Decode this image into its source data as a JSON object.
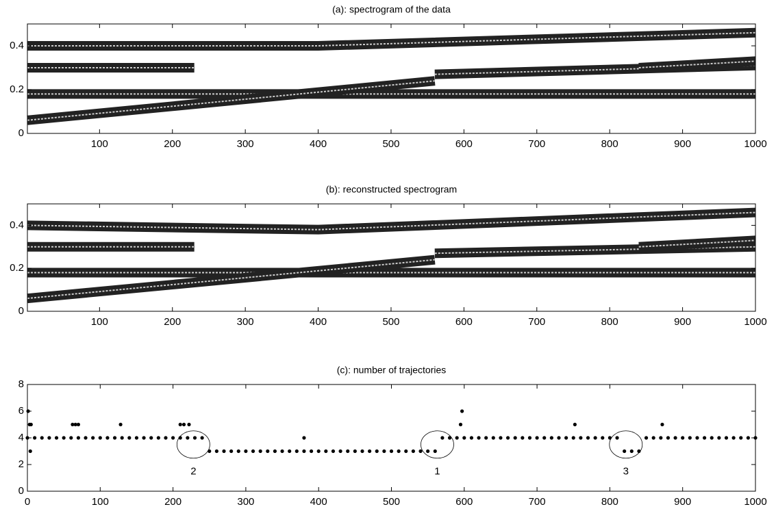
{
  "chart_data": [
    {
      "type": "contour",
      "title": "(a): spectrogram of the data",
      "xlim": [
        1,
        1000
      ],
      "xticks": [
        100,
        200,
        300,
        400,
        500,
        600,
        700,
        800,
        900,
        1000
      ],
      "ylim": [
        0,
        0.5
      ],
      "yticks": [
        0,
        0.2,
        0.4
      ],
      "series": [
        {
          "x": [
            1,
            400,
            1000
          ],
          "values": [
            0.4,
            0.4,
            0.46
          ]
        },
        {
          "x": [
            1,
            230
          ],
          "values": [
            0.3,
            0.3
          ]
        },
        {
          "x": [
            1,
            1000
          ],
          "values": [
            0.18,
            0.18
          ]
        },
        {
          "x": [
            1,
            560
          ],
          "values": [
            0.06,
            0.24
          ]
        },
        {
          "x": [
            560,
            1000
          ],
          "values": [
            0.27,
            0.31
          ]
        },
        {
          "x": [
            840,
            1000
          ],
          "values": [
            0.3,
            0.33
          ]
        }
      ]
    },
    {
      "type": "contour",
      "title": "(b): reconstructed spectrogram",
      "xlim": [
        1,
        1000
      ],
      "xticks": [
        100,
        200,
        300,
        400,
        500,
        600,
        700,
        800,
        900,
        1000
      ],
      "ylim": [
        0,
        0.5
      ],
      "yticks": [
        0,
        0.2,
        0.4
      ],
      "series": [
        {
          "x": [
            1,
            400,
            1000
          ],
          "values": [
            0.4,
            0.38,
            0.46
          ]
        },
        {
          "x": [
            1,
            230
          ],
          "values": [
            0.3,
            0.3
          ]
        },
        {
          "x": [
            1,
            1000
          ],
          "values": [
            0.18,
            0.18
          ]
        },
        {
          "x": [
            1,
            560
          ],
          "values": [
            0.06,
            0.24
          ]
        },
        {
          "x": [
            560,
            1000
          ],
          "values": [
            0.27,
            0.3
          ]
        },
        {
          "x": [
            840,
            1000
          ],
          "values": [
            0.3,
            0.33
          ]
        }
      ]
    },
    {
      "type": "scatter",
      "title": "(c): number of trajectories",
      "xlim": [
        0,
        1000
      ],
      "xticks": [
        0,
        100,
        200,
        300,
        400,
        500,
        600,
        700,
        800,
        900,
        1000
      ],
      "ylim": [
        0,
        8
      ],
      "yticks": [
        0,
        2,
        4,
        6,
        8
      ],
      "x": [
        0,
        10,
        20,
        30,
        40,
        50,
        60,
        70,
        80,
        90,
        100,
        110,
        120,
        130,
        140,
        150,
        160,
        170,
        180,
        190,
        200,
        210,
        220,
        230,
        240,
        250,
        260,
        270,
        280,
        290,
        300,
        310,
        320,
        330,
        340,
        350,
        360,
        370,
        380,
        390,
        400,
        410,
        420,
        430,
        440,
        450,
        460,
        470,
        480,
        490,
        500,
        510,
        520,
        530,
        540,
        550,
        560,
        570,
        580,
        590,
        600,
        610,
        620,
        630,
        640,
        650,
        660,
        670,
        680,
        690,
        700,
        710,
        720,
        730,
        740,
        750,
        760,
        770,
        780,
        790,
        800,
        810,
        820,
        830,
        840,
        850,
        860,
        870,
        880,
        890,
        900,
        910,
        920,
        930,
        940,
        950,
        960,
        970,
        980,
        990,
        1000,
        1,
        3,
        5,
        4,
        62,
        66,
        70,
        128,
        210,
        215,
        222,
        380,
        595,
        597,
        752,
        872
      ],
      "values": [
        4,
        4,
        4,
        4,
        4,
        4,
        4,
        4,
        4,
        4,
        4,
        4,
        4,
        4,
        4,
        4,
        4,
        4,
        4,
        4,
        4,
        4,
        4,
        4,
        4,
        3,
        3,
        3,
        3,
        3,
        3,
        3,
        3,
        3,
        3,
        3,
        3,
        3,
        3,
        3,
        3,
        3,
        3,
        3,
        3,
        3,
        3,
        3,
        3,
        3,
        3,
        3,
        3,
        3,
        3,
        3,
        3,
        4,
        4,
        4,
        4,
        4,
        4,
        4,
        4,
        4,
        4,
        4,
        4,
        4,
        4,
        4,
        4,
        4,
        4,
        4,
        4,
        4,
        4,
        4,
        4,
        4,
        3,
        3,
        3,
        4,
        4,
        4,
        4,
        4,
        4,
        4,
        4,
        4,
        4,
        4,
        4,
        4,
        4,
        4,
        4,
        6,
        5,
        5,
        3,
        5,
        5,
        5,
        5,
        5,
        5,
        5,
        4,
        5,
        6,
        5,
        5
      ],
      "annotations": [
        {
          "text": "2",
          "x": 228,
          "y": 3.5
        },
        {
          "text": "1",
          "x": 563,
          "y": 3.5
        },
        {
          "text": "3",
          "x": 822,
          "y": 3.5
        }
      ]
    }
  ]
}
